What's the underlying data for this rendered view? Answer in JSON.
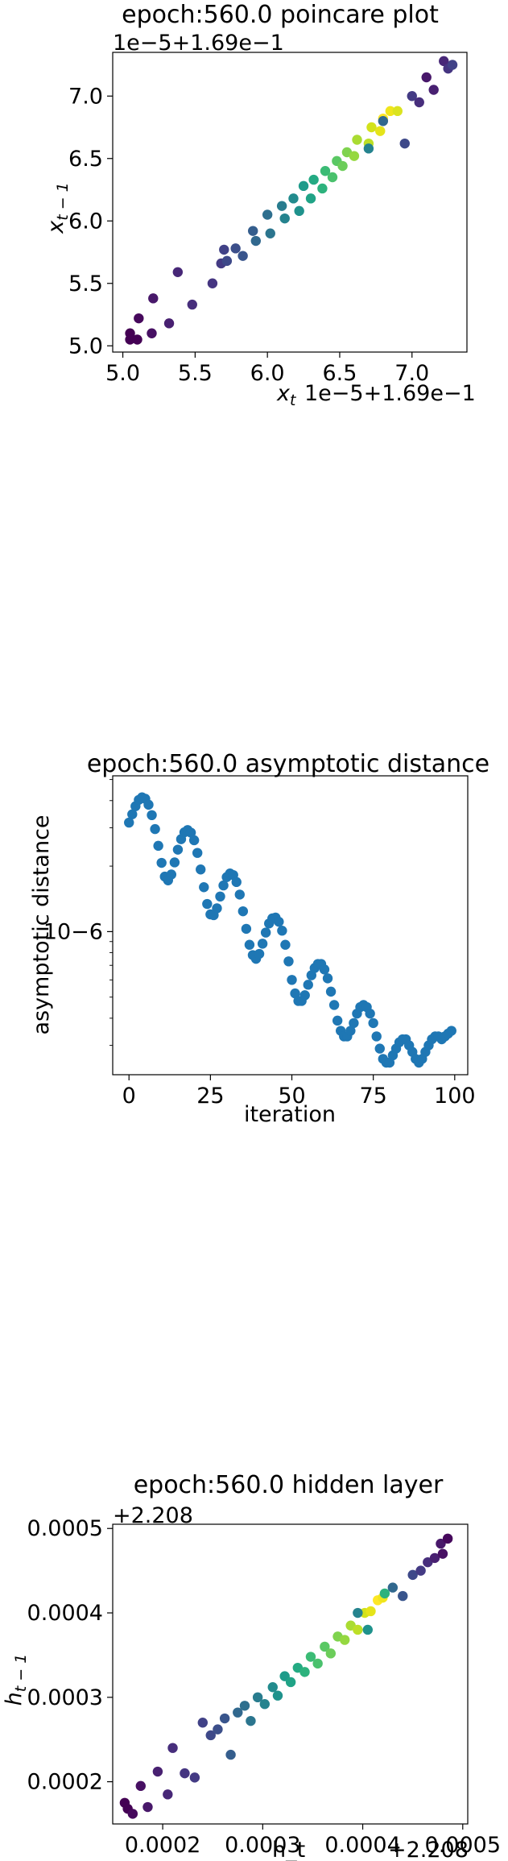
{
  "chart_data": [
    {
      "type": "scatter",
      "title": "epoch:560.0 poincare plot",
      "xlabel": "x_t",
      "ylabel": "x_{t−1}",
      "x_offset_text": "1e−5+1.69e−1",
      "y_offset_text": "1e−5+1.69e−1",
      "xlim": [
        4.93,
        7.38
      ],
      "ylim": [
        4.95,
        7.35
      ],
      "xticks": [
        5.0,
        5.5,
        6.0,
        6.5,
        7.0
      ],
      "yticks": [
        5.0,
        5.5,
        6.0,
        6.5,
        7.0
      ],
      "xtick_labels": [
        "5.0",
        "5.5",
        "6.0",
        "6.5",
        "7.0"
      ],
      "ytick_labels": [
        "5.0",
        "5.5",
        "6.0",
        "6.5",
        "7.0"
      ],
      "colormap": "viridis",
      "grid": false,
      "points": [
        [
          5.05,
          5.1
        ],
        [
          5.05,
          5.05
        ],
        [
          5.1,
          5.05
        ],
        [
          5.11,
          5.22
        ],
        [
          5.2,
          5.1
        ],
        [
          5.21,
          5.38
        ],
        [
          5.32,
          5.18
        ],
        [
          5.38,
          5.59
        ],
        [
          5.48,
          5.33
        ],
        [
          5.62,
          5.5
        ],
        [
          5.68,
          5.66
        ],
        [
          5.7,
          5.77
        ],
        [
          5.72,
          5.68
        ],
        [
          5.78,
          5.78
        ],
        [
          5.83,
          5.72
        ],
        [
          5.9,
          5.92
        ],
        [
          5.92,
          5.84
        ],
        [
          6.0,
          6.05
        ],
        [
          6.02,
          5.9
        ],
        [
          6.1,
          6.12
        ],
        [
          6.12,
          6.02
        ],
        [
          6.18,
          6.18
        ],
        [
          6.22,
          6.08
        ],
        [
          6.25,
          6.28
        ],
        [
          6.3,
          6.18
        ],
        [
          6.32,
          6.33
        ],
        [
          6.38,
          6.26
        ],
        [
          6.4,
          6.4
        ],
        [
          6.45,
          6.35
        ],
        [
          6.48,
          6.48
        ],
        [
          6.52,
          6.44
        ],
        [
          6.55,
          6.55
        ],
        [
          6.6,
          6.52
        ],
        [
          6.62,
          6.65
        ],
        [
          6.7,
          6.62
        ],
        [
          6.72,
          6.75
        ],
        [
          6.78,
          6.72
        ],
        [
          6.8,
          6.82
        ],
        [
          6.85,
          6.88
        ],
        [
          6.9,
          6.88
        ],
        [
          6.95,
          6.62
        ],
        [
          7.0,
          7.0
        ],
        [
          7.05,
          6.95
        ],
        [
          7.1,
          7.15
        ],
        [
          7.15,
          7.05
        ],
        [
          7.22,
          7.28
        ],
        [
          7.25,
          7.22
        ],
        [
          7.28,
          7.25
        ],
        [
          6.8,
          6.8
        ],
        [
          6.7,
          6.58
        ]
      ],
      "point_colors": [
        "#440154",
        "#440154",
        "#440154",
        "#46085c",
        "#471063",
        "#48186a",
        "#482071",
        "#472777",
        "#472e7c",
        "#453581",
        "#443b84",
        "#414287",
        "#3e4989",
        "#3c4f8a",
        "#39558c",
        "#355e8d",
        "#31688e",
        "#2e6f8e",
        "#2b758e",
        "#287c8e",
        "#25838e",
        "#228b8d",
        "#1f928c",
        "#1e9b8a",
        "#20a386",
        "#24aa83",
        "#2db27d",
        "#3bbb75",
        "#4ac16d",
        "#5ac864",
        "#6ccd5a",
        "#7fd34e",
        "#95d840",
        "#aadc32",
        "#bddf26",
        "#d2e21b",
        "#e5e419",
        "#fde725",
        "#f0e51c",
        "#dbe31f",
        "#3e4989",
        "#443b84",
        "#472e7c",
        "#48186a",
        "#482071",
        "#472777",
        "#453581",
        "#414287",
        "#31688e",
        "#25838e"
      ]
    },
    {
      "type": "scatter",
      "title": "epoch:560.0 asymptotic distance",
      "xlabel": "iteration",
      "ylabel": "asymptotic distance",
      "yscale": "log",
      "xlim": [
        -5,
        104
      ],
      "ylim": [
        2.2e-07,
        5.2e-06
      ],
      "xticks": [
        0,
        25,
        50,
        75,
        100
      ],
      "xtick_labels": [
        "0",
        "25",
        "50",
        "75",
        "100"
      ],
      "ytick_labels": [
        "10−6"
      ],
      "ytick_values": [
        1e-06
      ],
      "color": "#1f77b4",
      "grid": false,
      "x": [
        0,
        1,
        2,
        3,
        4,
        5,
        6,
        7,
        8,
        9,
        10,
        11,
        12,
        13,
        14,
        15,
        16,
        17,
        18,
        19,
        20,
        21,
        22,
        23,
        24,
        25,
        26,
        27,
        28,
        29,
        30,
        31,
        32,
        33,
        34,
        35,
        36,
        37,
        38,
        39,
        40,
        41,
        42,
        43,
        44,
        45,
        46,
        47,
        48,
        49,
        50,
        51,
        52,
        53,
        54,
        55,
        56,
        57,
        58,
        59,
        60,
        61,
        62,
        63,
        64,
        65,
        66,
        67,
        68,
        69,
        70,
        71,
        72,
        73,
        74,
        75,
        76,
        77,
        78,
        79,
        80,
        81,
        82,
        83,
        84,
        85,
        86,
        87,
        88,
        89,
        90,
        91,
        92,
        93,
        94,
        95,
        96,
        97,
        98,
        99
      ],
      "y": [
        3.17e-06,
        3.46e-06,
        3.77e-06,
        4.03e-06,
        4.14e-06,
        4.08e-06,
        3.83e-06,
        3.43e-06,
        2.96e-06,
        2.48e-06,
        2.07e-06,
        1.79e-06,
        1.72e-06,
        1.83e-06,
        2.08e-06,
        2.38e-06,
        2.66e-06,
        2.86e-06,
        2.93e-06,
        2.85e-06,
        2.63e-06,
        2.3e-06,
        1.93e-06,
        1.6e-06,
        1.34e-06,
        1.2e-06,
        1.19e-06,
        1.28e-06,
        1.45e-06,
        1.63e-06,
        1.78e-06,
        1.85e-06,
        1.82e-06,
        1.69e-06,
        1.48e-06,
        1.24e-06,
        1.03e-06,
        8.7e-07,
        7.8e-07,
        7.5e-07,
        7.9e-07,
        8.8e-07,
        9.9e-07,
        1.09e-06,
        1.15e-06,
        1.16e-06,
        1.11e-06,
        1.01e-06,
        8.7e-07,
        7.3e-07,
        6e-07,
        5.2e-07,
        4.8e-07,
        4.8e-07,
        5.1e-07,
        5.7e-07,
        6.3e-07,
        6.8e-07,
        7.1e-07,
        7.1e-07,
        6.7e-07,
        6.1e-07,
        5.3e-07,
        4.6e-07,
        3.9e-07,
        3.5e-07,
        3.3e-07,
        3.3e-07,
        3.5e-07,
        3.8e-07,
        4.2e-07,
        4.5e-07,
        4.6e-07,
        4.5e-07,
        4.2e-07,
        3.8e-07,
        3.3e-07,
        2.9e-07,
        2.6e-07,
        2.5e-07,
        2.5e-07,
        2.7e-07,
        2.9e-07,
        3.1e-07,
        3.2e-07,
        3.2e-07,
        3e-07,
        2.8e-07,
        2.6e-07,
        2.5e-07,
        2.6e-07,
        2.8e-07,
        3e-07,
        3.2e-07,
        3.3e-07,
        3.3e-07,
        3.2e-07,
        3.3e-07,
        3.4e-07,
        3.5e-07
      ]
    },
    {
      "type": "scatter",
      "title": "epoch:560.0 hidden layer",
      "xlabel": "h_t",
      "ylabel": "h_{t−1}",
      "x_offset_text": "+2.208",
      "y_offset_text": "+2.208",
      "xlim": [
        0.00015,
        0.000505
      ],
      "ylim": [
        0.00015,
        0.000505
      ],
      "xticks": [
        0.0002,
        0.0003,
        0.0004,
        0.0005
      ],
      "yticks": [
        0.0002,
        0.0003,
        0.0004,
        0.0005
      ],
      "xtick_labels": [
        "0.0002",
        "0.0003",
        "0.0004",
        "0.0005"
      ],
      "ytick_labels": [
        "0.0002",
        "0.0003",
        "0.0004",
        "0.0005"
      ],
      "colormap": "viridis",
      "grid": false,
      "points": [
        [
          0.000162,
          0.000175
        ],
        [
          0.000165,
          0.000168
        ],
        [
          0.00017,
          0.000162
        ],
        [
          0.000178,
          0.000195
        ],
        [
          0.000185,
          0.00017
        ],
        [
          0.000195,
          0.000212
        ],
        [
          0.000205,
          0.000185
        ],
        [
          0.00021,
          0.00024
        ],
        [
          0.000222,
          0.00021
        ],
        [
          0.000232,
          0.000205
        ],
        [
          0.00024,
          0.00027
        ],
        [
          0.000248,
          0.000255
        ],
        [
          0.000255,
          0.000262
        ],
        [
          0.000262,
          0.000275
        ],
        [
          0.000268,
          0.000232
        ],
        [
          0.000275,
          0.000282
        ],
        [
          0.000282,
          0.00029
        ],
        [
          0.000288,
          0.000272
        ],
        [
          0.000295,
          0.0003
        ],
        [
          0.000302,
          0.000292
        ],
        [
          0.00031,
          0.000312
        ],
        [
          0.000315,
          0.000302
        ],
        [
          0.000322,
          0.000325
        ],
        [
          0.000328,
          0.000318
        ],
        [
          0.000335,
          0.000335
        ],
        [
          0.000342,
          0.00033
        ],
        [
          0.000348,
          0.000348
        ],
        [
          0.000355,
          0.00034
        ],
        [
          0.000362,
          0.00036
        ],
        [
          0.000368,
          0.000352
        ],
        [
          0.000375,
          0.000372
        ],
        [
          0.000382,
          0.000368
        ],
        [
          0.000388,
          0.000385
        ],
        [
          0.000395,
          0.00038
        ],
        [
          0.000402,
          0.0004
        ],
        [
          0.000408,
          0.000402
        ],
        [
          0.000415,
          0.000415
        ],
        [
          0.00042,
          0.000418
        ],
        [
          0.000422,
          0.000423
        ],
        [
          0.000395,
          0.0004
        ],
        [
          0.000405,
          0.00038
        ],
        [
          0.00043,
          0.00043
        ],
        [
          0.00044,
          0.00042
        ],
        [
          0.00045,
          0.000445
        ],
        [
          0.000458,
          0.00045
        ],
        [
          0.000465,
          0.00046
        ],
        [
          0.000472,
          0.000465
        ],
        [
          0.000478,
          0.000482
        ],
        [
          0.000485,
          0.000488
        ],
        [
          0.00048,
          0.00047
        ]
      ],
      "point_colors": [
        "#440154",
        "#440154",
        "#46085c",
        "#471063",
        "#48186a",
        "#482071",
        "#472777",
        "#472e7c",
        "#453581",
        "#443b84",
        "#414287",
        "#3e4989",
        "#3c4f8a",
        "#39558c",
        "#355e8d",
        "#31688e",
        "#2e6f8e",
        "#2b758e",
        "#287c8e",
        "#25838e",
        "#228b8d",
        "#1f928c",
        "#1e9b8a",
        "#20a386",
        "#24aa83",
        "#2db27d",
        "#3bbb75",
        "#4ac16d",
        "#5ac864",
        "#6ccd5a",
        "#7fd34e",
        "#95d840",
        "#aadc32",
        "#bddf26",
        "#d2e21b",
        "#e5e419",
        "#fde725",
        "#f0e51c",
        "#2db27d",
        "#25838e",
        "#1f928c",
        "#31688e",
        "#39558c",
        "#3e4989",
        "#443b84",
        "#472e7c",
        "#482071",
        "#48186a",
        "#46085c",
        "#471063"
      ]
    }
  ]
}
